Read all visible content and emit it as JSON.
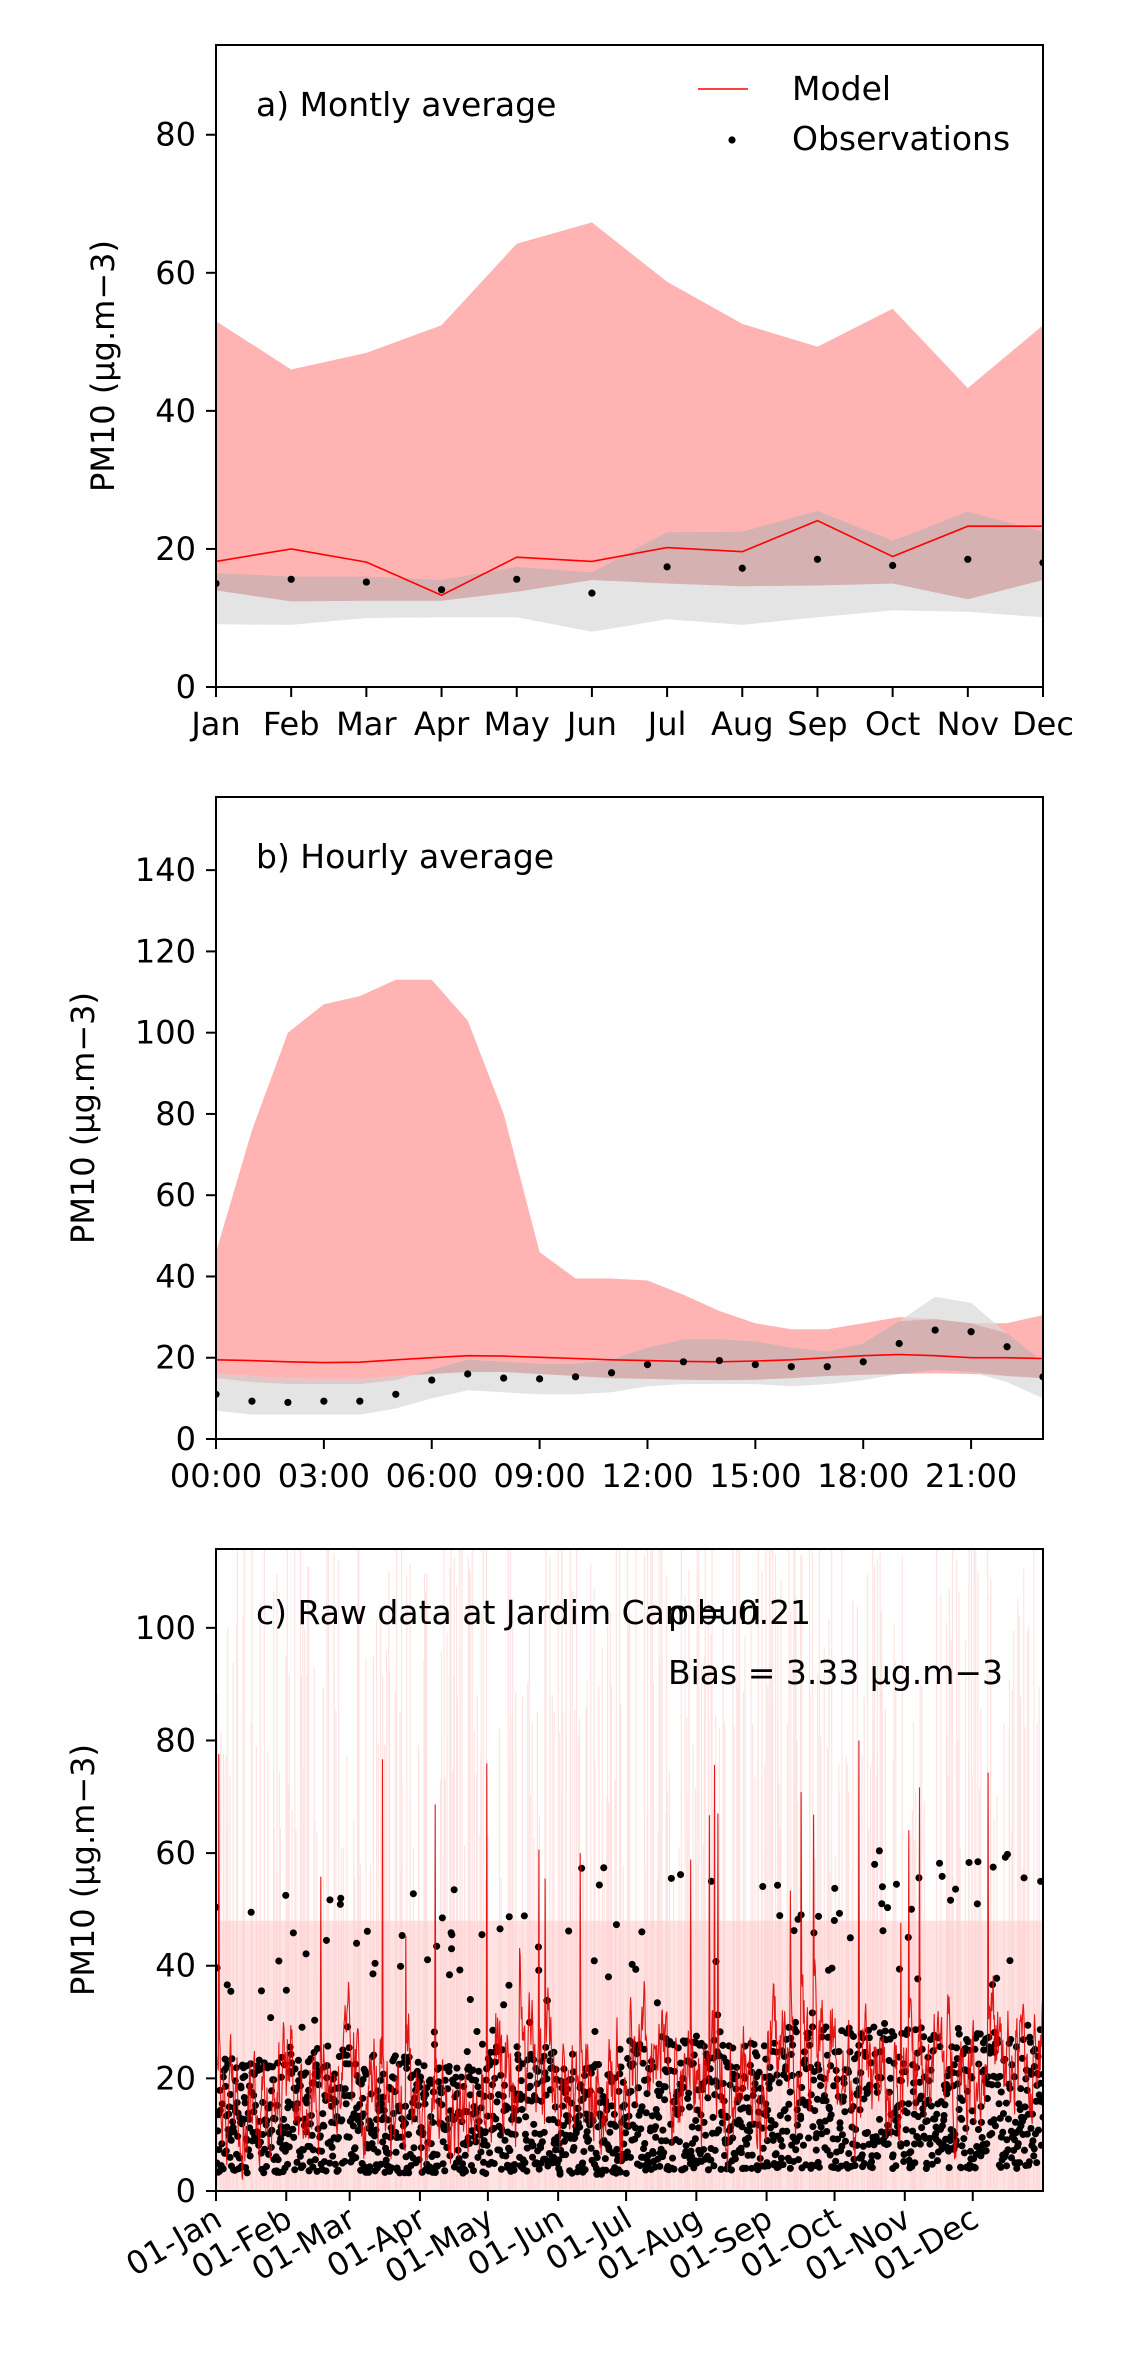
{
  "chart_data": [
    {
      "type": "line",
      "title": "a) Montly average",
      "ylabel": "PM10 (μg.m−3)",
      "ylim": [
        0,
        93
      ],
      "yticks": [
        0,
        20,
        40,
        60,
        80
      ],
      "categories": [
        "Jan",
        "Feb",
        "Mar",
        "Apr",
        "May",
        "Jun",
        "Jul",
        "Aug",
        "Sep",
        "Oct",
        "Nov",
        "Dec"
      ],
      "legend": {
        "placement": "top-right",
        "entries": [
          "Model",
          "Observations"
        ]
      },
      "series": [
        {
          "name": "Model",
          "values": [
            18.2,
            20.0,
            18.1,
            13.3,
            18.8,
            18.2,
            20.2,
            19.6,
            24.1,
            18.9,
            23.3,
            23.3
          ],
          "color": "#ff0000"
        },
        {
          "name": "Observations",
          "values": [
            15.0,
            15.6,
            15.2,
            14.1,
            15.6,
            13.6,
            17.4,
            17.2,
            18.5,
            17.6,
            18.5,
            18.0
          ],
          "color": "#000000"
        }
      ],
      "model_band": {
        "upper": [
          53.0,
          46.0,
          48.4,
          52.4,
          64.2,
          67.3,
          58.7,
          52.6,
          49.3,
          54.8,
          43.3,
          52.4
        ],
        "lower": [
          14.0,
          12.4,
          12.5,
          12.5,
          13.8,
          15.5,
          15.0,
          14.6,
          14.7,
          15.0,
          12.7,
          15.5
        ],
        "color": "#ffb3b3"
      },
      "obs_band": {
        "upper": [
          16.5,
          16.0,
          16.0,
          15.5,
          17.4,
          16.6,
          22.4,
          22.5,
          25.5,
          21.2,
          25.4,
          22.5
        ],
        "lower": [
          9.1,
          9.0,
          10.0,
          10.1,
          10.1,
          8.0,
          9.8,
          9.0,
          10.1,
          11.1,
          10.9,
          10.1
        ],
        "color": "#d9d9d9"
      }
    },
    {
      "type": "line",
      "title": "b) Hourly average",
      "ylabel": "PM10 (μg.m−3)",
      "ylim": [
        0,
        158
      ],
      "yticks": [
        0,
        20,
        40,
        60,
        80,
        100,
        120,
        140
      ],
      "x": [
        0,
        1,
        2,
        3,
        4,
        5,
        6,
        7,
        8,
        9,
        10,
        11,
        12,
        13,
        14,
        15,
        16,
        17,
        18,
        19,
        20,
        21,
        22,
        23
      ],
      "xticks": [
        "00:00",
        "03:00",
        "06:00",
        "09:00",
        "12:00",
        "15:00",
        "18:00",
        "21:00"
      ],
      "series": [
        {
          "name": "Model",
          "values": [
            19.5,
            19.3,
            19.0,
            18.8,
            18.9,
            19.5,
            20.0,
            20.5,
            20.4,
            20.1,
            19.8,
            19.5,
            19.3,
            19.1,
            19.0,
            19.2,
            19.5,
            20.0,
            20.5,
            20.8,
            20.5,
            20.0,
            20.0,
            19.8
          ],
          "color": "#ff0000"
        },
        {
          "name": "Observations",
          "values": [
            11.0,
            9.3,
            9.0,
            9.3,
            9.3,
            11.0,
            14.5,
            16.0,
            15.0,
            14.8,
            15.3,
            16.3,
            18.3,
            19.0,
            19.3,
            18.3,
            17.8,
            17.8,
            19.0,
            23.5,
            26.8,
            26.4,
            22.7,
            15.3
          ],
          "color": "#000000"
        }
      ],
      "model_band": {
        "upper": [
          46.0,
          76.0,
          100.0,
          107.0,
          109.0,
          113.0,
          113.0,
          103.0,
          80.0,
          46.0,
          39.5,
          39.5,
          39.0,
          35.5,
          31.5,
          28.5,
          27.0,
          27.0,
          28.5,
          30.0,
          29.5,
          28.5,
          28.5,
          30.5
        ],
        "lower": [
          16.0,
          15.5,
          15.0,
          14.8,
          14.8,
          15.5,
          16.0,
          16.5,
          16.5,
          16.0,
          15.5,
          15.0,
          14.8,
          14.6,
          14.5,
          14.6,
          15.0,
          15.5,
          15.8,
          16.0,
          16.2,
          16.0,
          15.5,
          15.0
        ],
        "color": "#ffb3b3"
      },
      "obs_band": {
        "upper": [
          15.0,
          14.0,
          13.5,
          13.5,
          13.5,
          14.5,
          17.0,
          19.5,
          19.0,
          18.5,
          18.5,
          19.5,
          22.5,
          24.5,
          24.5,
          24.0,
          22.5,
          21.5,
          23.5,
          29.0,
          35.0,
          33.5,
          26.0,
          19.0
        ],
        "lower": [
          7.0,
          6.0,
          6.0,
          6.0,
          6.0,
          7.5,
          10.0,
          12.0,
          11.5,
          11.0,
          11.0,
          11.5,
          13.0,
          13.5,
          13.5,
          13.5,
          13.0,
          13.5,
          14.5,
          16.0,
          17.0,
          16.5,
          14.0,
          10.0
        ],
        "color": "#d9d9d9"
      }
    },
    {
      "type": "line",
      "title": "c) Raw data at Jardim Camburi",
      "ylabel": "PM10 (μg.m−3)",
      "ylim": [
        0,
        114
      ],
      "yticks": [
        0,
        20,
        40,
        60,
        80,
        100
      ],
      "xlim": [
        "2021-01-01",
        "2021-12-31"
      ],
      "xticks": [
        "01-Jan",
        "01-Feb",
        "01-Mar",
        "01-Apr",
        "01-May",
        "01-Jun",
        "01-Jul",
        "01-Aug",
        "01-Sep",
        "01-Oct",
        "01-Nov",
        "01-Dec"
      ],
      "annotations": {
        "rho": "ρ = 0.21",
        "bias": "Bias = 3.33 μg.m−3"
      },
      "series": [
        {
          "name": "Model",
          "color": "#ff0000",
          "description_note": "hourly series"
        },
        {
          "name": "Observations",
          "color": "#000000"
        }
      ],
      "monthly_levels": {
        "model_mean": [
          18,
          20,
          18,
          13,
          19,
          18,
          20,
          20,
          24,
          19,
          23,
          23
        ],
        "obs_mean": [
          15,
          16,
          15,
          14,
          16,
          14,
          17,
          17,
          18,
          18,
          18,
          18
        ],
        "obs_max": [
          54,
          54,
          56,
          55,
          52,
          61,
          60,
          62,
          61,
          61,
          60,
          61
        ]
      }
    }
  ]
}
